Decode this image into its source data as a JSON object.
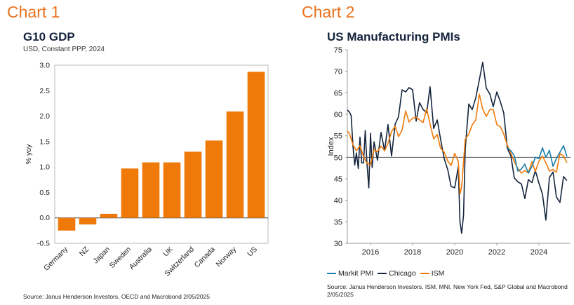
{
  "headings": {
    "left": "Chart 1",
    "right": "Chart 2"
  },
  "chart_data": [
    {
      "type": "bar",
      "title": "G10 GDP",
      "subtitle": "USD, Constant PPP, 2024",
      "ylabel": "% yoy",
      "xlabel": "",
      "categories": [
        "Germany",
        "NZ",
        "Japan",
        "Sweden",
        "Australia",
        "UK",
        "Switzerland",
        "Canada",
        "Norway",
        "US"
      ],
      "values": [
        -0.25,
        -0.13,
        0.08,
        0.97,
        1.09,
        1.09,
        1.3,
        1.52,
        2.09,
        2.87
      ],
      "ylim": [
        -0.5,
        3.0
      ],
      "yticks": [
        "3.0",
        "2.5",
        "2.0",
        "1.5",
        "1.0",
        "0.5",
        "0.0",
        "-0.5"
      ],
      "bar_color": "#f07a09",
      "source": "Source: Janus Henderson Investors, OECD and Macrobond  2/05/2025"
    },
    {
      "type": "line",
      "title": "US Manufacturing PMIs",
      "ylabel": "Index",
      "ylim": [
        30,
        75
      ],
      "yticks": [
        "75",
        "70",
        "65",
        "60",
        "55",
        "50",
        "45",
        "40",
        "35",
        "30"
      ],
      "xlim": [
        2014.9,
        2025.5
      ],
      "xticks": [
        "2016",
        "2018",
        "2020",
        "2022",
        "2024"
      ],
      "reference_line": 50,
      "series": [
        {
          "name": "Markit PMI",
          "color": "#1a7fa8",
          "x": [
            2022.5,
            2022.67,
            2022.83,
            2023.0,
            2023.17,
            2023.33,
            2023.5,
            2023.67,
            2023.83,
            2024.0,
            2024.17,
            2024.33,
            2024.5,
            2024.67,
            2024.83,
            2025.0,
            2025.17,
            2025.33
          ],
          "y": [
            52.2,
            51.5,
            50.4,
            46.8,
            47.3,
            48.4,
            46.3,
            47.9,
            50.0,
            49.7,
            52.2,
            50.0,
            51.6,
            47.9,
            49.7,
            51.2,
            52.7,
            50.2
          ]
        },
        {
          "name": "Chicago",
          "color": "#14243c",
          "x": [
            2014.9,
            2015.0,
            2015.08,
            2015.17,
            2015.25,
            2015.33,
            2015.42,
            2015.5,
            2015.58,
            2015.67,
            2015.75,
            2015.83,
            2015.92,
            2016.0,
            2016.08,
            2016.17,
            2016.33,
            2016.5,
            2016.67,
            2016.83,
            2017.0,
            2017.17,
            2017.33,
            2017.5,
            2017.67,
            2017.83,
            2018.0,
            2018.17,
            2018.33,
            2018.5,
            2018.67,
            2018.83,
            2019.0,
            2019.17,
            2019.33,
            2019.5,
            2019.67,
            2019.83,
            2020.0,
            2020.17,
            2020.25,
            2020.33,
            2020.42,
            2020.5,
            2020.67,
            2020.83,
            2021.0,
            2021.17,
            2021.33,
            2021.5,
            2021.67,
            2021.83,
            2022.0,
            2022.17,
            2022.33,
            2022.5,
            2022.67,
            2022.83,
            2023.0,
            2023.17,
            2023.33,
            2023.5,
            2023.67,
            2023.83,
            2024.0,
            2024.17,
            2024.33,
            2024.5,
            2024.67,
            2024.83,
            2025.0,
            2025.17,
            2025.33
          ],
          "y": [
            61,
            60.5,
            59.7,
            52.4,
            48.2,
            51.0,
            47.4,
            54.7,
            48.7,
            48.7,
            56.2,
            48.7,
            42.9,
            55.6,
            47.6,
            53.6,
            49.3,
            55.8,
            51.5,
            57.6,
            50.3,
            57.7,
            59.4,
            65.7,
            65.2,
            66.2,
            65.7,
            58.4,
            62.7,
            61.1,
            60.4,
            66.4,
            56.7,
            58.7,
            54.2,
            49.7,
            47.1,
            43.2,
            42.9,
            47.8,
            35.0,
            32.3,
            36.6,
            51.9,
            62.4,
            61.1,
            63.8,
            68.0,
            72.1,
            66.1,
            64.7,
            61.8,
            65.2,
            62.9,
            60.3,
            52.1,
            50.3,
            45.2,
            44.3,
            43.8,
            40.4,
            44.8,
            44.1,
            46.9,
            44.0,
            41.4,
            35.4,
            45.3,
            46.6,
            40.8,
            39.5,
            45.5,
            44.6
          ]
        },
        {
          "name": "ISM",
          "color": "#f07a09",
          "x": [
            2014.9,
            2015.0,
            2015.17,
            2015.33,
            2015.5,
            2015.67,
            2015.83,
            2016.0,
            2016.17,
            2016.33,
            2016.5,
            2016.67,
            2016.83,
            2017.0,
            2017.17,
            2017.33,
            2017.5,
            2017.67,
            2017.83,
            2018.0,
            2018.17,
            2018.33,
            2018.5,
            2018.67,
            2018.83,
            2019.0,
            2019.17,
            2019.33,
            2019.5,
            2019.67,
            2019.83,
            2020.0,
            2020.17,
            2020.25,
            2020.33,
            2020.5,
            2020.67,
            2020.83,
            2021.0,
            2021.17,
            2021.33,
            2021.5,
            2021.67,
            2021.83,
            2022.0,
            2022.17,
            2022.33,
            2022.5,
            2022.67,
            2022.83,
            2023.0,
            2023.17,
            2023.33,
            2023.5,
            2023.67,
            2023.83,
            2024.0,
            2024.17,
            2024.33,
            2024.5,
            2024.67,
            2024.83,
            2025.0,
            2025.17,
            2025.33
          ],
          "y": [
            56.1,
            55.5,
            52.9,
            51.5,
            52.7,
            50.2,
            48.6,
            48.2,
            51.8,
            51.3,
            52.6,
            51.5,
            53.2,
            56.0,
            57.2,
            54.8,
            56.3,
            60.8,
            58.2,
            59.1,
            59.3,
            58.7,
            58.1,
            61.3,
            57.7,
            54.3,
            55.3,
            52.1,
            51.2,
            49.1,
            48.1,
            50.9,
            49.1,
            41.5,
            43.1,
            54.2,
            55.4,
            57.5,
            58.7,
            64.7,
            61.2,
            59.5,
            61.1,
            61.1,
            57.6,
            57.1,
            55.4,
            52.8,
            50.9,
            49.0,
            47.4,
            46.3,
            46.9,
            46.4,
            49.0,
            46.7,
            49.1,
            50.3,
            48.7,
            46.8,
            47.2,
            46.5,
            50.9,
            50.3,
            48.7
          ]
        }
      ],
      "legend_position": "bottom-left",
      "source": "Source: Janus Henderson Investors, ISM, MNI, New York Fed, S&P Global and Macrobond  2/05/2025"
    }
  ]
}
